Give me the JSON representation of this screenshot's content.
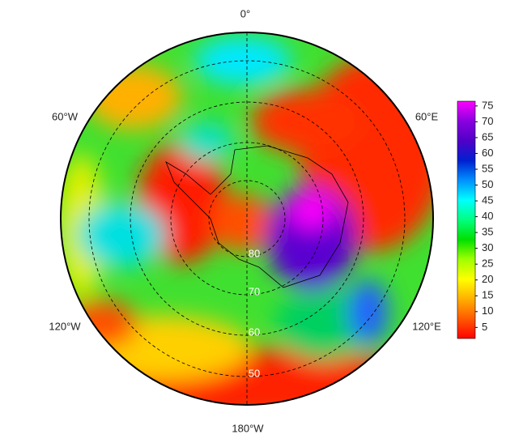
{
  "map": {
    "projection": "south-polar-stereographic",
    "longitude_labels": [
      "0°",
      "60°E",
      "120°E",
      "180°W",
      "120°W",
      "60°W"
    ],
    "latitude_labels": [
      "80",
      "70",
      "60",
      "50"
    ],
    "colorbar": {
      "clim": [
        1.5,
        76.5
      ],
      "ticks": [
        5,
        10,
        15,
        20,
        25,
        30,
        35,
        40,
        45,
        50,
        55,
        60,
        65,
        70,
        75
      ],
      "colormap": [
        "#ff0000",
        "#ff5a00",
        "#ffb000",
        "#ffff00",
        "#a0ff00",
        "#00e000",
        "#00ff80",
        "#00ffff",
        "#0090ff",
        "#0020d0",
        "#5000c8",
        "#8a00e0",
        "#ff00ff"
      ]
    }
  }
}
